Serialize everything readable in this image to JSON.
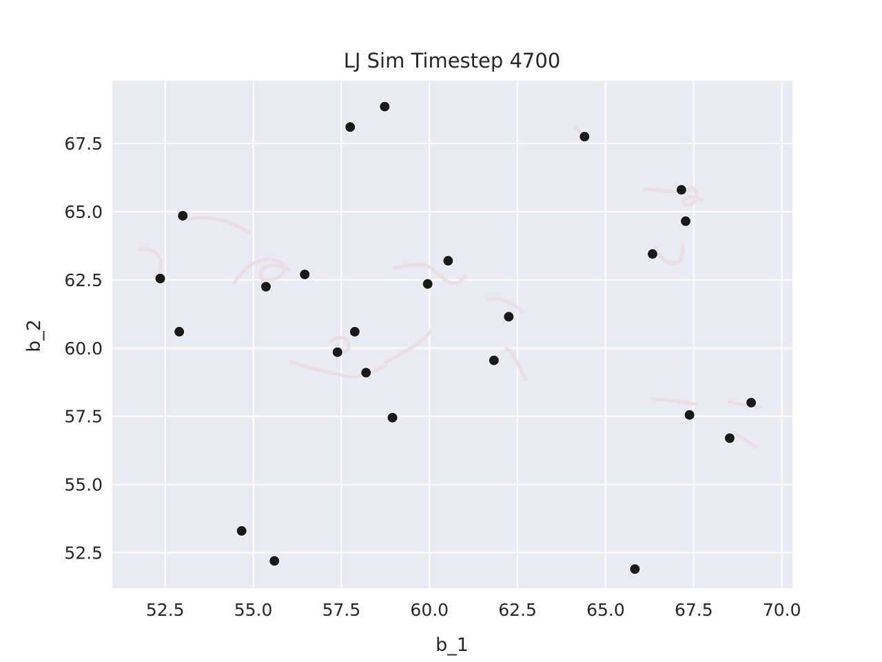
{
  "chart_data": {
    "type": "scatter",
    "title": "LJ Sim Timestep 4700",
    "xlabel": "b_1",
    "ylabel": "b_2",
    "xlim": [
      51.0,
      70.3
    ],
    "ylim": [
      51.2,
      69.8
    ],
    "xticks": [
      52.5,
      55.0,
      57.5,
      60.0,
      62.5,
      65.0,
      67.5,
      70.0
    ],
    "yticks": [
      52.5,
      55.0,
      57.5,
      60.0,
      62.5,
      65.0,
      67.5
    ],
    "xtick_labels": [
      "52.5",
      "55.0",
      "57.5",
      "60.0",
      "62.5",
      "65.0",
      "67.5",
      "70.0"
    ],
    "ytick_labels": [
      "52.5",
      "55.0",
      "57.5",
      "60.0",
      "62.5",
      "65.0",
      "67.5"
    ],
    "grid": true,
    "colors": {
      "background": "#eaeaf2",
      "grid": "#ffffff",
      "point": "#1a1a1a",
      "trail": "#e8dde2"
    },
    "points": [
      {
        "x": 57.75,
        "y": 68.1
      },
      {
        "x": 58.73,
        "y": 68.85
      },
      {
        "x": 64.4,
        "y": 67.75
      },
      {
        "x": 53.0,
        "y": 64.85
      },
      {
        "x": 67.15,
        "y": 65.8
      },
      {
        "x": 67.27,
        "y": 64.65
      },
      {
        "x": 52.36,
        "y": 62.55
      },
      {
        "x": 55.36,
        "y": 62.25
      },
      {
        "x": 56.46,
        "y": 62.7
      },
      {
        "x": 60.53,
        "y": 63.2
      },
      {
        "x": 59.95,
        "y": 62.35
      },
      {
        "x": 66.33,
        "y": 63.45
      },
      {
        "x": 52.9,
        "y": 60.6
      },
      {
        "x": 57.88,
        "y": 60.6
      },
      {
        "x": 57.39,
        "y": 59.85
      },
      {
        "x": 62.25,
        "y": 61.15
      },
      {
        "x": 61.83,
        "y": 59.55
      },
      {
        "x": 58.2,
        "y": 59.1
      },
      {
        "x": 58.95,
        "y": 57.45
      },
      {
        "x": 67.38,
        "y": 57.55
      },
      {
        "x": 69.13,
        "y": 58.0
      },
      {
        "x": 68.52,
        "y": 56.7
      },
      {
        "x": 54.67,
        "y": 53.3
      },
      {
        "x": 55.6,
        "y": 52.2
      },
      {
        "x": 65.83,
        "y": 51.9
      }
    ]
  }
}
